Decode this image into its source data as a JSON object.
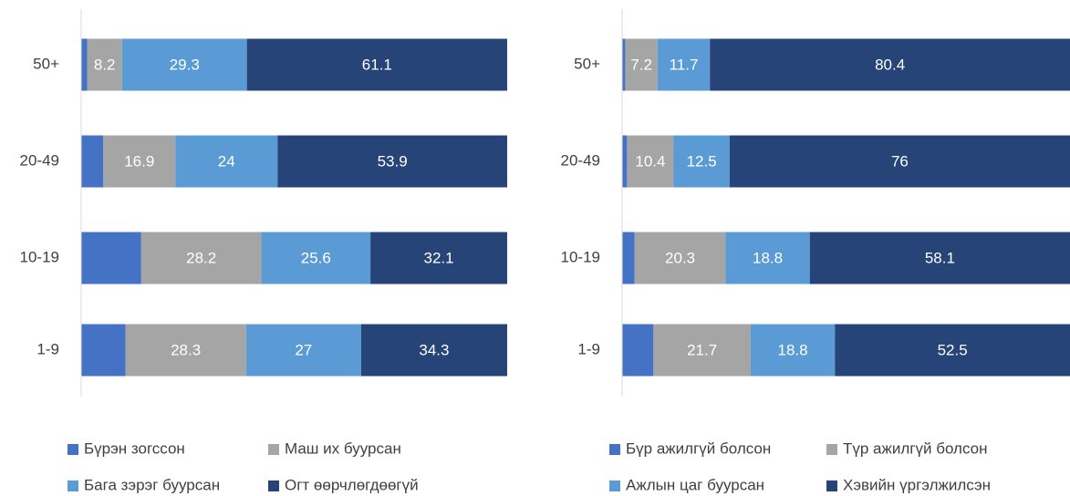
{
  "chart_data": [
    {
      "type": "stacked-bar-horizontal",
      "categories": [
        "50+",
        "20-49",
        "10-19",
        "1-9"
      ],
      "xlim": [
        0,
        100
      ],
      "series": [
        {
          "name": "Бүрэн зогссон",
          "color": "#4472c4",
          "values": [
            1.4,
            5.2,
            14.1,
            10.4
          ],
          "labels": false
        },
        {
          "name": "Маш их буурсан",
          "color": "#a5a5a5",
          "values": [
            8.2,
            16.9,
            28.2,
            28.3
          ],
          "labels": true
        },
        {
          "name": "Бага зэрэг буурсан",
          "color": "#5b9bd5",
          "values": [
            29.3,
            24,
            25.6,
            27
          ],
          "labels": true
        },
        {
          "name": "Огт өөрчлөгдөөгүй",
          "color": "#264478",
          "values": [
            61.1,
            53.9,
            32.1,
            34.3
          ],
          "labels": true
        }
      ]
    },
    {
      "type": "stacked-bar-horizontal",
      "categories": [
        "50+",
        "20-49",
        "10-19",
        "1-9"
      ],
      "xlim": [
        0,
        100
      ],
      "series": [
        {
          "name": "Бүр ажилгүй болсон",
          "color": "#4472c4",
          "values": [
            0.7,
            1.1,
            2.8,
            7
          ],
          "labels": false
        },
        {
          "name": "Түр ажилгүй болсон",
          "color": "#a5a5a5",
          "values": [
            7.2,
            10.4,
            20.3,
            21.7
          ],
          "labels": true
        },
        {
          "name": "Ажлын цаг буурсан",
          "color": "#5b9bd5",
          "values": [
            11.7,
            12.5,
            18.8,
            18.8
          ],
          "labels": true
        },
        {
          "name": "Хэвийн үргэлжилсэн",
          "color": "#264478",
          "values": [
            80.4,
            76,
            58.1,
            52.5
          ],
          "labels": true
        }
      ]
    }
  ]
}
